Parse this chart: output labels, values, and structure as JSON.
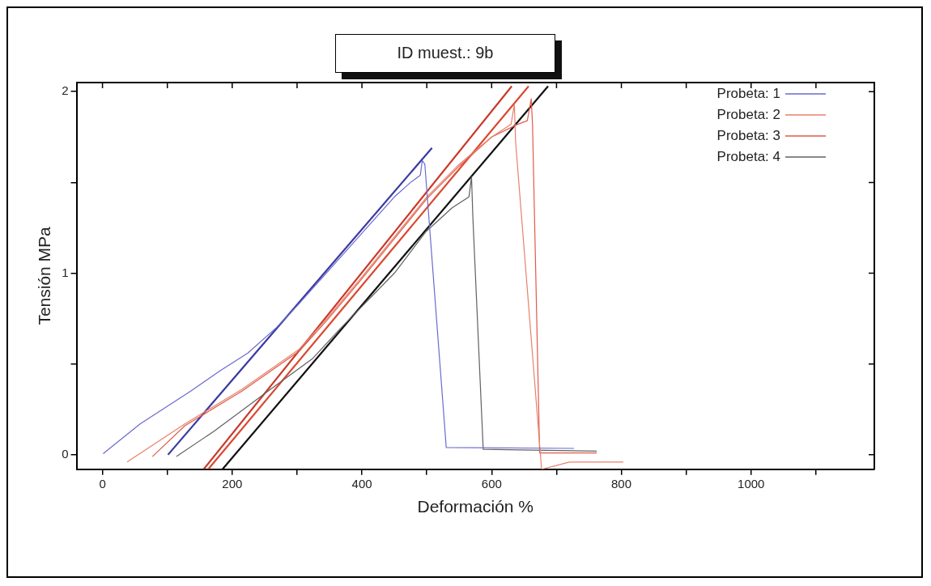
{
  "chart_data": {
    "type": "line",
    "title": "ID muest.: 9b",
    "xlabel": "Deformación %",
    "ylabel": "Tensión MPa",
    "xlim": [
      -40,
      1190
    ],
    "ylim": [
      -0.08,
      2.05
    ],
    "xticks": [
      0,
      {
        "value": 100,
        "label": null
      },
      200,
      {
        "value": 300,
        "label": null
      },
      400,
      {
        "value": 500,
        "label": null
      },
      600,
      {
        "value": 700,
        "label": null
      },
      800,
      {
        "value": 900,
        "label": null
      },
      1000,
      {
        "value": 1100,
        "label": null
      }
    ],
    "yticks": [
      0,
      {
        "value": 0.5,
        "label": null
      },
      1,
      {
        "value": 1.5,
        "label": null
      },
      2
    ],
    "grid": false,
    "legend": "top right",
    "marker": "none",
    "line_style": "solid",
    "series": [
      {
        "name": "Probeta: 1",
        "color": "#6a6ad0",
        "x": [
          1,
          58,
          97,
          136,
          180,
          224,
          268,
          300,
          350,
          400,
          450,
          475,
          490,
          493,
          497,
          530,
          727
        ],
        "values": [
          0.006,
          0.17,
          0.26,
          0.35,
          0.46,
          0.56,
          0.7,
          0.82,
          1.02,
          1.22,
          1.42,
          1.5,
          1.54,
          1.62,
          1.6,
          0.04,
          0.035
        ]
      },
      {
        "name": "Probeta: 2",
        "color": "#e8806a",
        "x": [
          38,
          127,
          215,
          303,
          346,
          400,
          450,
          500,
          550,
          600,
          630,
          635,
          637,
          677,
          720,
          803
        ],
        "values": [
          -0.04,
          0.17,
          0.36,
          0.58,
          0.75,
          0.98,
          1.2,
          1.42,
          1.6,
          1.75,
          1.82,
          1.93,
          1.72,
          -0.08,
          -0.04,
          -0.04
        ]
      },
      {
        "name": "Probeta: 3",
        "color": "#e05a4a",
        "x": [
          77,
          127,
          215,
          303,
          346,
          400,
          450,
          500,
          550,
          600,
          640,
          655,
          661,
          663,
          674,
          762
        ],
        "values": [
          -0.01,
          0.16,
          0.35,
          0.57,
          0.74,
          0.97,
          1.19,
          1.41,
          1.59,
          1.75,
          1.82,
          1.84,
          1.96,
          1.82,
          0.01,
          0.01
        ]
      },
      {
        "name": "Probeta: 4",
        "color": "#606060",
        "x": [
          114,
          172,
          259,
          324,
          368,
          450,
          499,
          539,
          565,
          569,
          571,
          587,
          762
        ],
        "values": [
          -0.01,
          0.13,
          0.36,
          0.53,
          0.7,
          1.0,
          1.23,
          1.36,
          1.42,
          1.53,
          1.31,
          0.03,
          0.02
        ]
      },
      {
        "color": "#3a3aa0",
        "x": [
          101,
          508
        ],
        "values": [
          0,
          1.69
        ]
      },
      {
        "color": "#c83a2a",
        "x": [
          156,
          631
        ],
        "values": [
          -0.08,
          2.03
        ]
      },
      {
        "color": "#d84a30",
        "x": [
          163,
          657
        ],
        "values": [
          -0.08,
          2.03
        ]
      },
      {
        "color": "#111111",
        "x": [
          185,
          687
        ],
        "values": [
          -0.08,
          2.03
        ]
      }
    ]
  }
}
